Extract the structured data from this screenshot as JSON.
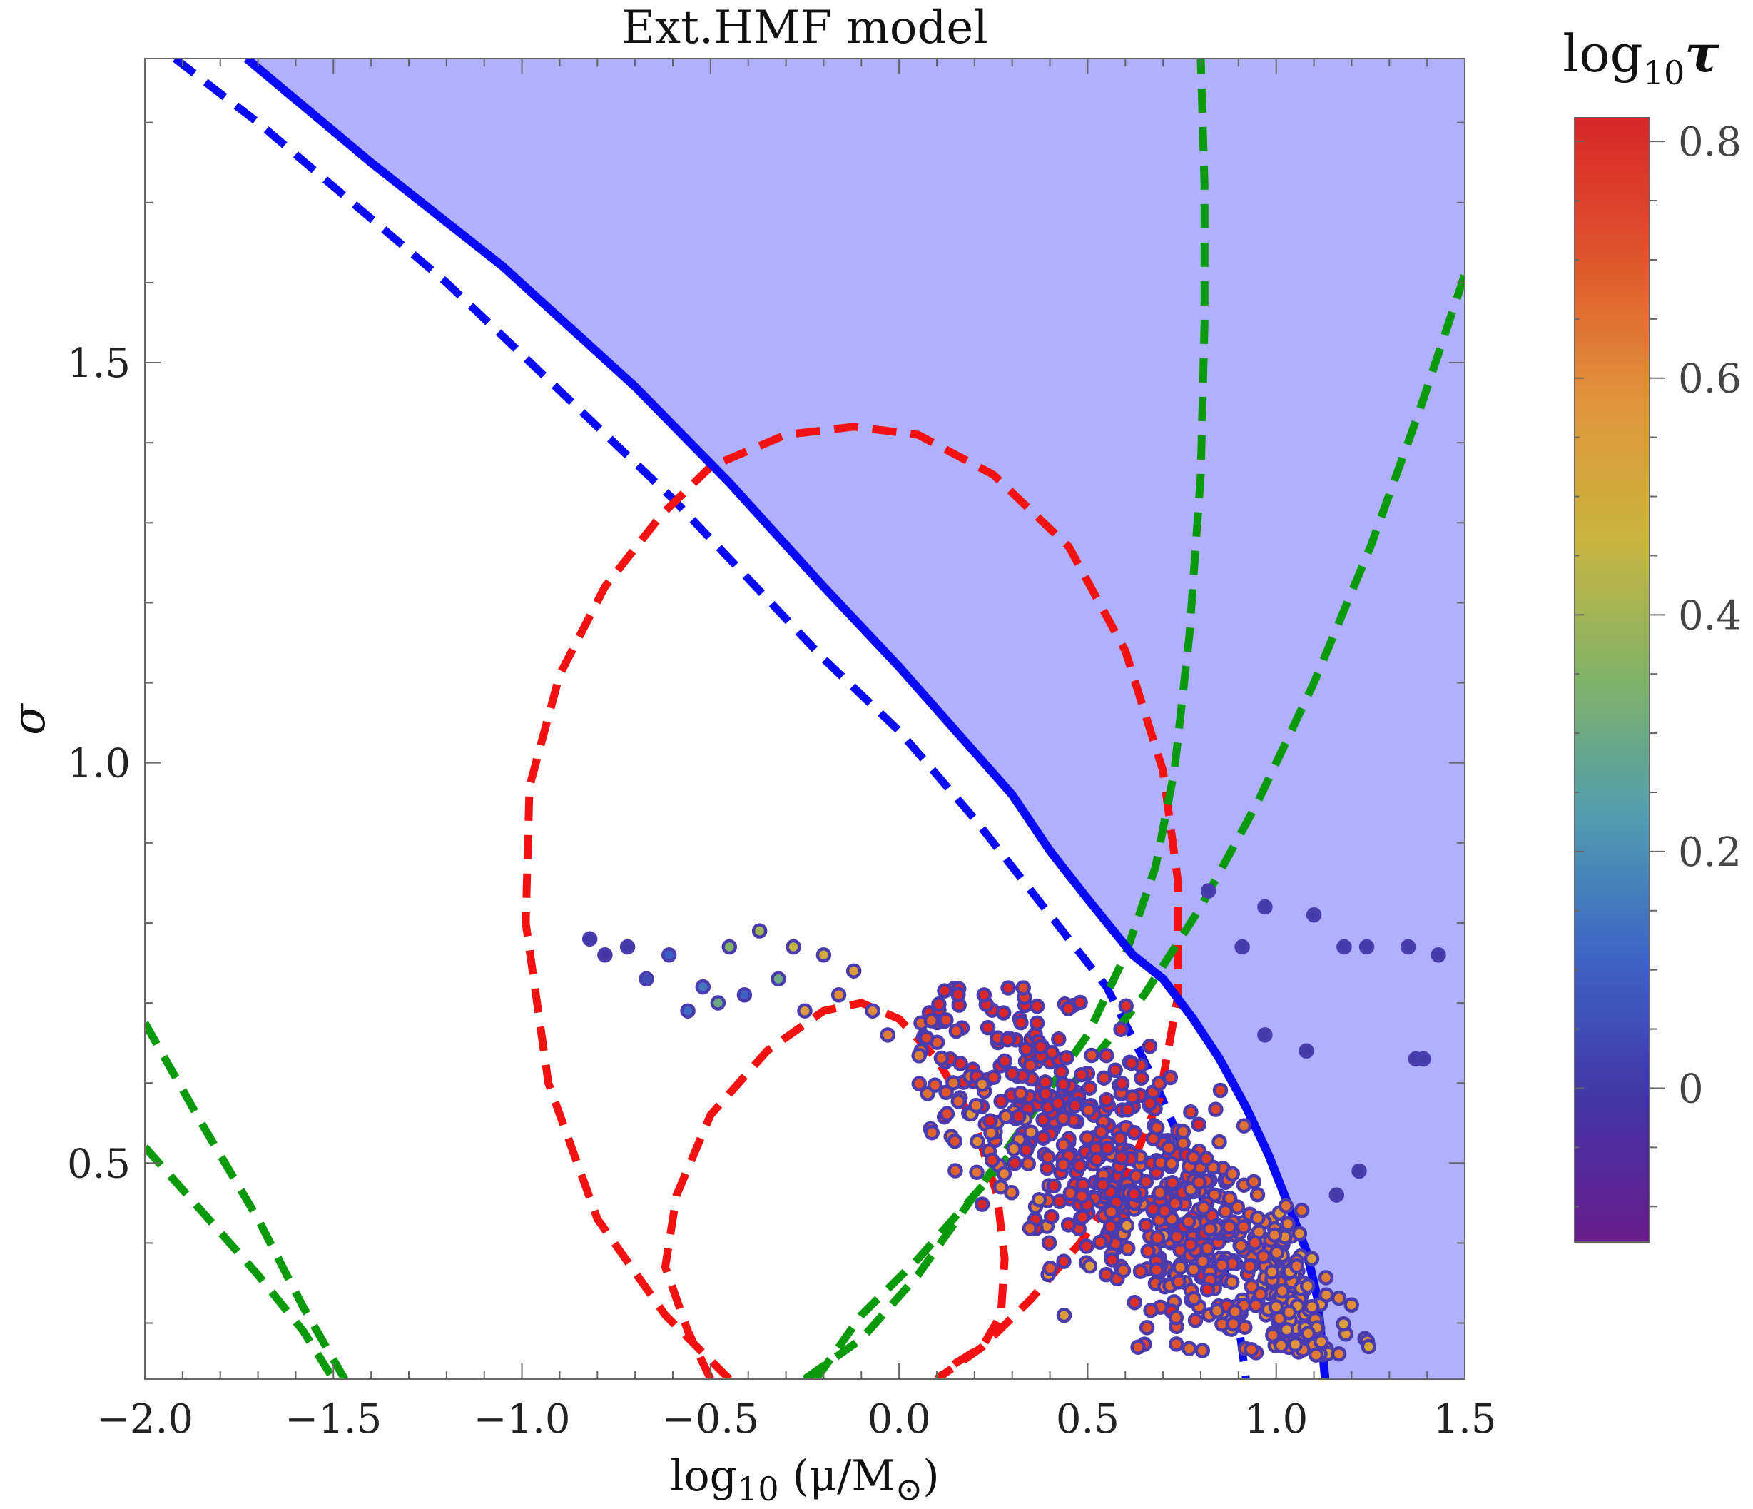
{
  "chart_data": {
    "type": "scatter",
    "title": "Ext.HMF model",
    "xlabel": "log10 (μ/M⊙)",
    "xlabel_parts": {
      "base": "log",
      "sub": "10",
      "rest": " (μ/M",
      "msub": "⊙",
      "close": ")"
    },
    "ylabel": "σ",
    "xlim": [
      -2.0,
      1.5
    ],
    "ylim": [
      0.23,
      1.88
    ],
    "xticks": [
      -2.0,
      -1.5,
      -1.0,
      -0.5,
      0.0,
      0.5,
      1.0,
      1.5
    ],
    "xtick_labels": [
      "−2.0",
      "−1.5",
      "−1.0",
      "−0.5",
      "0.0",
      "0.5",
      "1.0",
      "1.5"
    ],
    "yticks": [
      0.5,
      1.0,
      1.5
    ],
    "ytick_labels": [
      "0.5",
      "1.0",
      "1.5"
    ],
    "colorbar": {
      "title": "log10 τ",
      "title_parts": {
        "base": "log",
        "sub": "10",
        "sym": "τ"
      },
      "range": [
        -0.13,
        0.82
      ],
      "ticks": [
        0.0,
        0.2,
        0.4,
        0.6,
        0.8
      ],
      "tick_labels": [
        "0",
        "0.2",
        "0.4",
        "0.6",
        "0.8"
      ],
      "colormap": [
        "#6a1d8c",
        "#4335a8",
        "#3d63c8",
        "#4e9bb0",
        "#7fb368",
        "#c9b43e",
        "#e19439",
        "#e0552b",
        "#d9262a"
      ]
    },
    "shaded_region": {
      "description": "excluded region above solid blue curve",
      "color": "#b0b0ff"
    },
    "lines": [
      {
        "name": "solid-blue-boundary",
        "color": "#0a0af5",
        "style": "solid",
        "x": [
          -1.73,
          -1.4,
          -1.05,
          -0.98,
          -0.7,
          -0.45,
          -0.2,
          0.0,
          0.15,
          0.3,
          0.4,
          0.5,
          0.62,
          0.7,
          0.78,
          0.85,
          0.92,
          0.98,
          1.03,
          1.08,
          1.11,
          1.13
        ],
        "y": [
          1.88,
          1.75,
          1.62,
          1.59,
          1.47,
          1.35,
          1.22,
          1.12,
          1.04,
          0.96,
          0.89,
          0.83,
          0.76,
          0.73,
          0.68,
          0.63,
          0.57,
          0.51,
          0.45,
          0.39,
          0.33,
          0.23
        ]
      },
      {
        "name": "dashed-blue",
        "color": "#0a0af5",
        "style": "dashed",
        "x": [
          -1.92,
          -1.7,
          -1.45,
          -1.2,
          -1.0,
          -0.8,
          -0.6,
          -0.4,
          -0.2,
          0.0,
          0.2,
          0.4,
          0.55,
          0.68,
          0.78,
          0.85,
          0.9,
          0.92
        ],
        "y": [
          1.88,
          1.8,
          1.7,
          1.6,
          1.51,
          1.42,
          1.33,
          1.23,
          1.13,
          1.04,
          0.93,
          0.81,
          0.72,
          0.6,
          0.49,
          0.39,
          0.3,
          0.23
        ]
      },
      {
        "name": "dashed-red-outer",
        "color": "#f21212",
        "style": "dashed",
        "x": [
          -0.45,
          -0.62,
          -0.8,
          -0.93,
          -0.99,
          -0.98,
          -0.9,
          -0.78,
          -0.63,
          -0.5,
          -0.3,
          -0.12,
          0.05,
          0.25,
          0.45,
          0.6,
          0.7,
          0.74,
          0.74,
          0.69,
          0.6,
          0.48,
          0.35,
          0.22,
          0.1
        ],
        "y": [
          0.23,
          0.31,
          0.43,
          0.6,
          0.8,
          0.97,
          1.11,
          1.22,
          1.31,
          1.37,
          1.41,
          1.42,
          1.41,
          1.36,
          1.27,
          1.14,
          0.99,
          0.85,
          0.71,
          0.58,
          0.48,
          0.4,
          0.33,
          0.27,
          0.23
        ]
      },
      {
        "name": "dashed-red-inner",
        "color": "#f21212",
        "style": "dashed",
        "x": [
          -0.5,
          -0.56,
          -0.62,
          -0.59,
          -0.5,
          -0.35,
          -0.2,
          -0.1,
          0.0,
          0.1,
          0.2,
          0.26,
          0.28,
          0.27,
          0.22,
          0.15,
          0.1
        ],
        "y": [
          0.23,
          0.29,
          0.37,
          0.46,
          0.56,
          0.64,
          0.69,
          0.7,
          0.68,
          0.63,
          0.55,
          0.46,
          0.38,
          0.31,
          0.27,
          0.25,
          0.23
        ]
      },
      {
        "name": "dashed-green-top",
        "color": "#0b9a0b",
        "style": "dashed",
        "x": [
          -0.25,
          -0.1,
          0.05,
          0.2,
          0.35,
          0.5,
          0.6,
          0.68,
          0.73,
          0.77,
          0.8,
          0.81,
          0.81,
          0.8
        ],
        "y": [
          0.23,
          0.28,
          0.36,
          0.46,
          0.56,
          0.66,
          0.76,
          0.87,
          0.99,
          1.16,
          1.36,
          1.55,
          1.72,
          1.88
        ]
      },
      {
        "name": "dashed-green-right",
        "color": "#0b9a0b",
        "style": "dashed",
        "x": [
          -0.22,
          -0.1,
          0.05,
          0.2,
          0.35,
          0.5,
          0.65,
          0.8,
          0.95,
          1.1,
          1.25,
          1.38,
          1.5
        ],
        "y": [
          0.23,
          0.31,
          0.38,
          0.46,
          0.54,
          0.62,
          0.71,
          0.82,
          0.95,
          1.1,
          1.27,
          1.44,
          1.61
        ]
      },
      {
        "name": "dashed-green-left-1",
        "color": "#0b9a0b",
        "style": "dashed",
        "x": [
          -2.0,
          -1.85,
          -1.7,
          -1.58,
          -1.47
        ],
        "y": [
          0.675,
          0.55,
          0.43,
          0.32,
          0.23
        ]
      },
      {
        "name": "dashed-green-left-2",
        "color": "#0b9a0b",
        "style": "dashed",
        "x": [
          -2.0,
          -1.85,
          -1.7,
          -1.58,
          -1.5
        ],
        "y": [
          0.52,
          0.44,
          0.36,
          0.29,
          0.23
        ]
      }
    ],
    "scatter_outliers": {
      "name": "sparse points (log10 τ, low values)",
      "x": [
        0.82,
        0.97,
        1.1,
        0.91,
        1.35,
        1.43,
        1.18,
        1.24,
        1.37,
        0.97,
        1.08,
        1.39,
        1.22,
        1.16,
        -0.82,
        -0.78,
        -0.72,
        -0.67,
        -0.61,
        -0.56,
        -0.52,
        -0.48,
        -0.45,
        -0.41,
        -0.37,
        -0.32,
        -0.28,
        -0.25,
        -0.2,
        -0.16,
        -0.12,
        -0.07,
        -0.03
      ],
      "y": [
        0.84,
        0.82,
        0.81,
        0.77,
        0.77,
        0.76,
        0.77,
        0.77,
        0.63,
        0.66,
        0.64,
        0.63,
        0.49,
        0.46,
        0.78,
        0.76,
        0.77,
        0.73,
        0.76,
        0.69,
        0.72,
        0.7,
        0.77,
        0.71,
        0.79,
        0.73,
        0.77,
        0.69,
        0.76,
        0.71,
        0.74,
        0.69,
        0.66
      ],
      "c": [
        0.0,
        0.0,
        0.0,
        0.0,
        0.0,
        0.0,
        0.0,
        0.0,
        0.0,
        0.0,
        0.0,
        0.0,
        0.0,
        0.0,
        0.0,
        -0.02,
        0.0,
        0.05,
        0.1,
        0.12,
        0.15,
        0.3,
        0.35,
        0.1,
        0.4,
        0.3,
        0.45,
        0.55,
        0.5,
        0.6,
        0.55,
        0.6,
        0.62
      ]
    },
    "scatter_cloud": {
      "name": "main point cloud (generated from density description)",
      "count": 900,
      "centers": [
        {
          "x": 0.5,
          "y": 0.5,
          "sx": 0.22,
          "sy": 0.07,
          "c": 0.78,
          "w": 0.4
        },
        {
          "x": 0.8,
          "y": 0.43,
          "sx": 0.2,
          "sy": 0.06,
          "c": 0.74,
          "w": 0.3
        },
        {
          "x": 1.05,
          "y": 0.32,
          "sx": 0.12,
          "sy": 0.05,
          "c": 0.62,
          "w": 0.2
        },
        {
          "x": 0.1,
          "y": 0.6,
          "sx": 0.2,
          "sy": 0.05,
          "c": 0.7,
          "w": 0.1
        }
      ]
    }
  }
}
